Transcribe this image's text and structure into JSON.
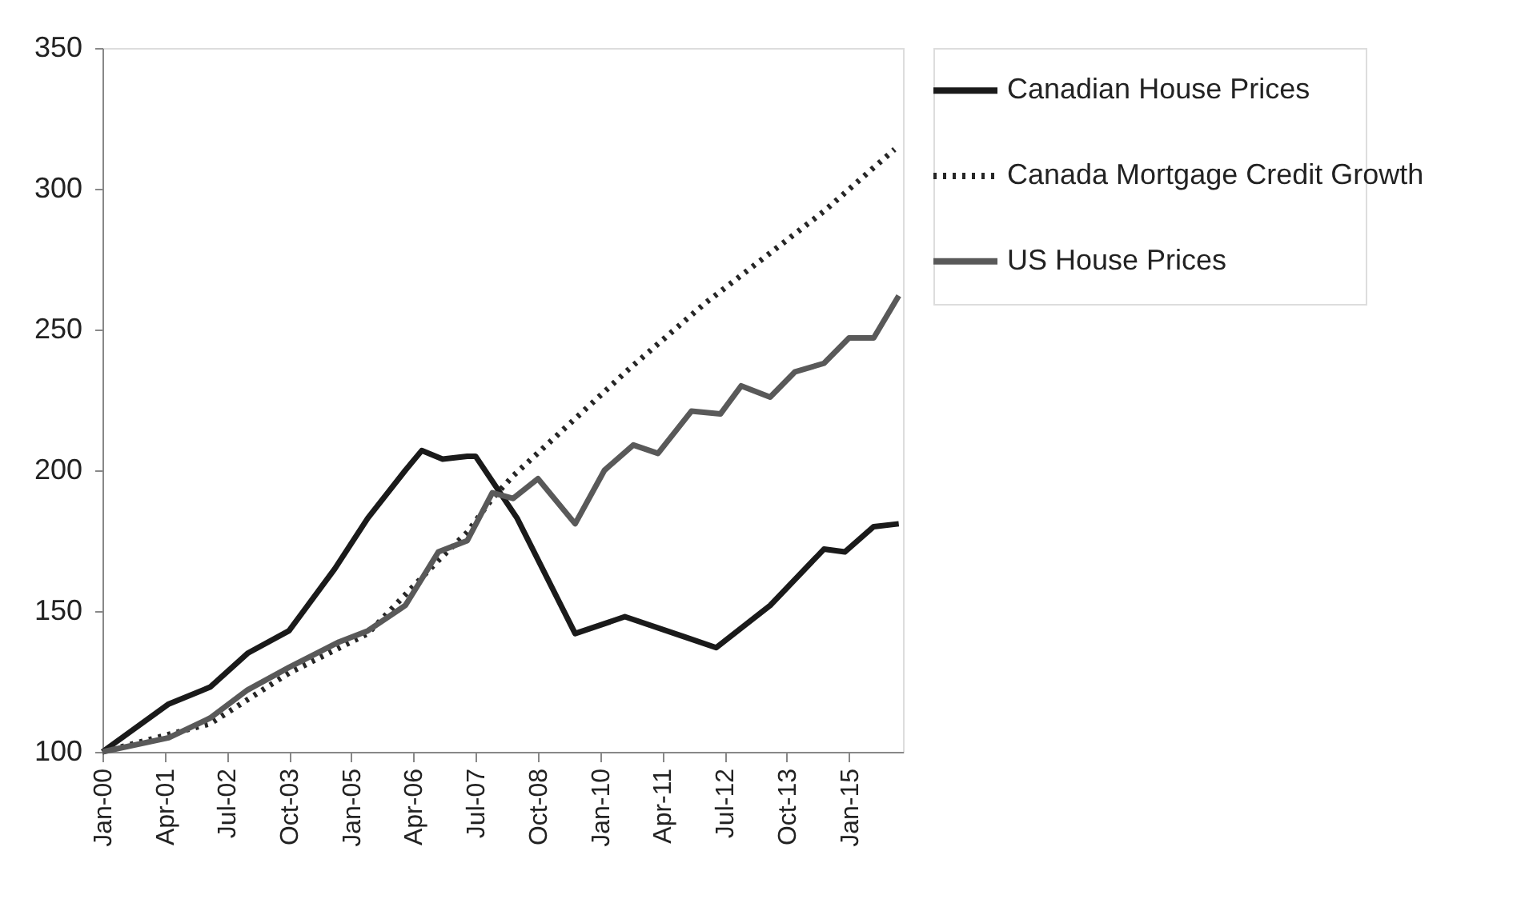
{
  "chart_data": {
    "type": "line",
    "xlim": [
      "2000-01",
      "2016-02"
    ],
    "ylim": [
      100,
      350
    ],
    "yticks": [
      100,
      150,
      200,
      250,
      300,
      350
    ],
    "xticks": [
      {
        "value": "2000-01",
        "label": "Jan-00"
      },
      {
        "value": "2001-04",
        "label": "Apr-01"
      },
      {
        "value": "2002-07",
        "label": "Jul-02"
      },
      {
        "value": "2003-10",
        "label": "Oct-03"
      },
      {
        "value": "2005-01",
        "label": "Jan-05"
      },
      {
        "value": "2006-04",
        "label": "Apr-06"
      },
      {
        "value": "2007-07",
        "label": "Jul-07"
      },
      {
        "value": "2008-10",
        "label": "Oct-08"
      },
      {
        "value": "2010-01",
        "label": "Jan-10"
      },
      {
        "value": "2011-04",
        "label": "Apr-11"
      },
      {
        "value": "2012-07",
        "label": "Jul-12"
      },
      {
        "value": "2013-10",
        "label": "Oct-13"
      },
      {
        "value": "2015-01",
        "label": "Jan-15"
      }
    ],
    "grid": false,
    "legend": "right",
    "marker": "none",
    "series": [
      {
        "name": "Canadian House Prices",
        "color": "#1a1a1a",
        "line_style": "solid",
        "x": [
          "2000-01",
          "2001-05",
          "2002-03",
          "2002-12",
          "2003-10",
          "2004-09",
          "2005-05",
          "2006-02",
          "2006-06",
          "2006-11",
          "2007-05",
          "2007-07",
          "2008-05",
          "2009-07",
          "2010-07",
          "2011-09",
          "2012-05",
          "2013-06",
          "2014-07",
          "2014-12",
          "2015-07",
          "2016-01"
        ],
        "values": [
          100,
          117,
          123,
          135,
          143,
          165,
          183,
          200,
          207,
          204,
          205,
          205,
          183,
          142,
          148,
          141,
          137,
          152,
          172,
          171,
          180,
          181
        ]
      },
      {
        "name": "Canada Mortgage Credit Growth",
        "color": "#262626",
        "line_style": "dotted",
        "x": [
          "2000-01",
          "2002-03",
          "2003-10",
          "2005-05",
          "2006-10",
          "2007-05",
          "2007-11",
          "2008-04",
          "2009-06",
          "2010-08",
          "2012-02",
          "2013-05",
          "2014-07",
          "2015-12"
        ],
        "values": [
          100,
          110,
          128,
          142,
          168,
          178,
          190,
          198,
          217,
          236,
          259,
          276,
          292,
          314
        ]
      },
      {
        "name": "US House Prices",
        "color": "#595959",
        "line_style": "solid",
        "x": [
          "2000-01",
          "2001-05",
          "2002-03",
          "2002-12",
          "2003-10",
          "2004-10",
          "2005-05",
          "2006-02",
          "2006-10",
          "2007-05",
          "2007-11",
          "2008-04",
          "2008-10",
          "2009-07",
          "2010-02",
          "2010-09",
          "2011-03",
          "2011-11",
          "2012-06",
          "2012-11",
          "2013-06",
          "2013-12",
          "2014-07",
          "2015-01",
          "2015-07",
          "2016-01"
        ],
        "values": [
          100,
          105,
          112,
          122,
          130,
          139,
          143,
          152,
          171,
          175,
          192,
          190,
          197,
          181,
          200,
          209,
          206,
          221,
          220,
          230,
          226,
          235,
          238,
          247,
          247,
          262
        ]
      }
    ]
  }
}
